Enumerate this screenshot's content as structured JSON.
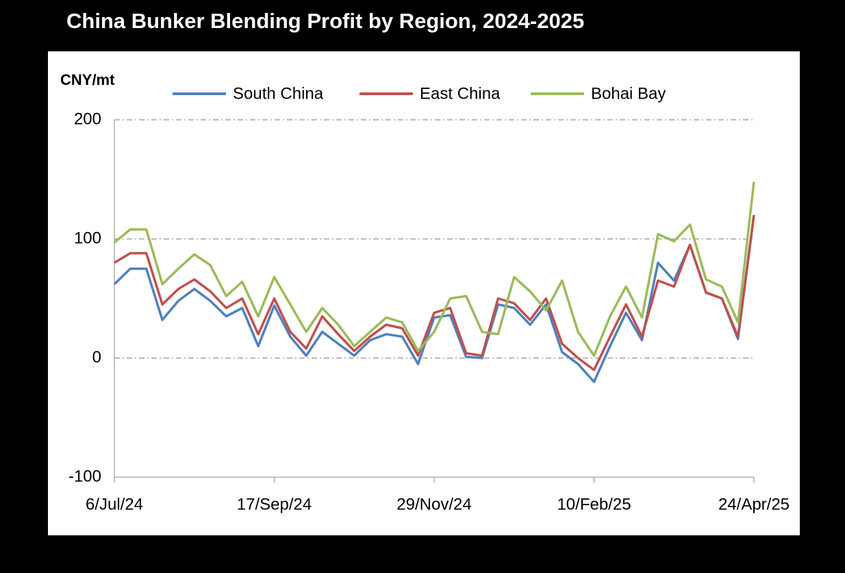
{
  "chart_data": {
    "type": "line",
    "title": "China Bunker Blending Profit by Region, 2024-2025",
    "y_label": "CNY/mt",
    "categories": [
      "6/Jul/24",
      null,
      null,
      null,
      null,
      null,
      null,
      null,
      null,
      null,
      "17/Sep/24",
      null,
      null,
      null,
      null,
      null,
      null,
      null,
      null,
      null,
      "29/Nov/24",
      null,
      null,
      null,
      null,
      null,
      null,
      null,
      null,
      null,
      "10/Feb/25",
      null,
      null,
      null,
      null,
      null,
      null,
      null,
      null,
      null,
      "24/Apr/25"
    ],
    "series": [
      {
        "name": "South China",
        "color": "#4f81bd",
        "values": [
          62,
          75,
          75,
          32,
          48,
          58,
          48,
          35,
          42,
          10,
          44,
          18,
          2,
          22,
          12,
          2,
          15,
          20,
          18,
          -5,
          34,
          36,
          1,
          0,
          45,
          42,
          28,
          45,
          5,
          -5,
          -20,
          10,
          38,
          15,
          80,
          65,
          95,
          55,
          50,
          16,
          120
        ]
      },
      {
        "name": "East China",
        "color": "#c0504d",
        "values": [
          80,
          88,
          88,
          45,
          58,
          66,
          56,
          42,
          50,
          20,
          50,
          22,
          8,
          35,
          20,
          6,
          18,
          28,
          25,
          2,
          38,
          42,
          4,
          2,
          50,
          46,
          32,
          50,
          12,
          0,
          -10,
          18,
          45,
          18,
          65,
          60,
          95,
          55,
          50,
          18,
          120
        ]
      },
      {
        "name": "Bohai Bay",
        "color": "#9bbb59",
        "values": [
          97,
          108,
          108,
          62,
          75,
          87,
          78,
          52,
          64,
          35,
          68,
          45,
          22,
          42,
          28,
          10,
          22,
          34,
          30,
          6,
          22,
          50,
          52,
          22,
          20,
          68,
          56,
          40,
          65,
          22,
          2,
          35,
          60,
          34,
          104,
          98,
          112,
          66,
          60,
          30,
          148
        ]
      }
    ],
    "ylim": [
      -100,
      200
    ],
    "yticks": [
      -100,
      0,
      100,
      200
    ],
    "grid": true
  }
}
